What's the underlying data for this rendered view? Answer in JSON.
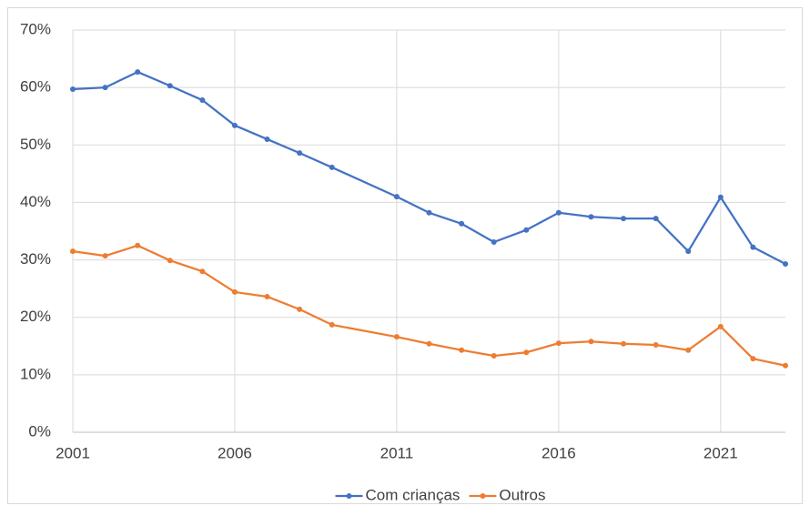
{
  "chart_data": {
    "type": "line",
    "x": [
      2001,
      2002,
      2003,
      2004,
      2005,
      2006,
      2007,
      2008,
      2009,
      2011,
      2012,
      2013,
      2014,
      2015,
      2016,
      2017,
      2018,
      2019,
      2020,
      2021,
      2022,
      2023
    ],
    "series": [
      {
        "name": "Com crianças",
        "color": "#4472c4",
        "values": [
          59.7,
          60.0,
          62.7,
          60.3,
          57.8,
          53.4,
          51.0,
          48.6,
          46.1,
          41.0,
          38.2,
          36.3,
          33.1,
          35.2,
          38.2,
          37.5,
          37.2,
          37.2,
          31.5,
          40.9,
          32.2,
          29.3
        ]
      },
      {
        "name": "Outros",
        "color": "#ed7d31",
        "values": [
          31.5,
          30.7,
          32.5,
          29.9,
          28.0,
          24.4,
          23.6,
          21.4,
          18.7,
          16.6,
          15.4,
          14.3,
          13.3,
          13.9,
          15.5,
          15.8,
          15.4,
          15.2,
          14.3,
          18.4,
          12.8,
          11.6
        ]
      }
    ],
    "xlim": [
      2001,
      2023
    ],
    "xticks": [
      2001,
      2006,
      2011,
      2016,
      2021
    ],
    "ylim": [
      0,
      70
    ],
    "yticks": [
      {
        "value": 0,
        "label": "0%"
      },
      {
        "value": 10,
        "label": "10%"
      },
      {
        "value": 20,
        "label": "20%"
      },
      {
        "value": 30,
        "label": "30%"
      },
      {
        "value": 40,
        "label": "40%"
      },
      {
        "value": 50,
        "label": "50%"
      },
      {
        "value": 60,
        "label": "60%"
      },
      {
        "value": 70,
        "label": "70%"
      }
    ],
    "grid": true,
    "legend": "bottom"
  }
}
